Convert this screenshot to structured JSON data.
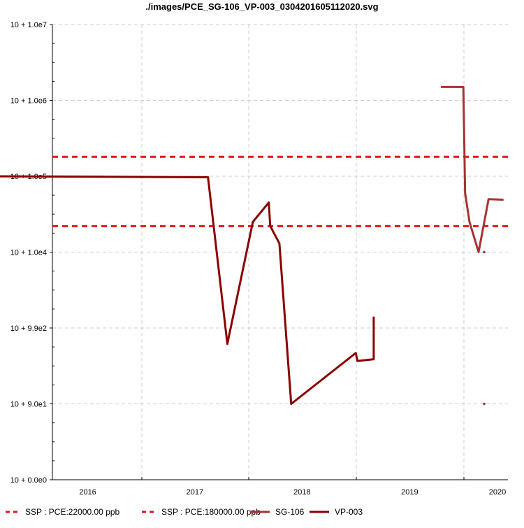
{
  "chart_data": {
    "type": "line",
    "title": "./images/PCE_SG-106_VP-003_0304201605112020.svg",
    "y_scale": "log",
    "ylim": [
      0,
      10000000
    ],
    "y_ticks": [
      {
        "value": 10000000,
        "label": "10 + 1.0e7"
      },
      {
        "value": 1000000,
        "label": "10 + 1.0e6"
      },
      {
        "value": 100000,
        "label": "10 + 1.0e5"
      },
      {
        "value": 10000,
        "label": "10 + 1.0e4"
      },
      {
        "value": 990,
        "label": "10 + 9.9e2"
      },
      {
        "value": 90,
        "label": "10 + 9.0e1"
      },
      {
        "value": 0,
        "label": "10 + 0.0e0"
      }
    ],
    "x_ticks": [
      "2016",
      "2017",
      "2018",
      "2019",
      "2020"
    ],
    "grid": true,
    "legend_position": "bottom",
    "thresholds": [
      {
        "name": "SSP : PCE:22000.00 ppb",
        "value": 22000,
        "color": "#e8151b",
        "style": "dashed"
      },
      {
        "name": "SSP : PCE:180000.00 ppb",
        "value": 180000,
        "color": "#e8151b",
        "style": "dashed"
      }
    ],
    "series": [
      {
        "name": "SG-106",
        "color": "#a83232",
        "points": [
          {
            "date": "2019-10-15",
            "value": 1500000
          },
          {
            "date": "2019-12-30",
            "value": 1500000
          },
          {
            "date": "2020-01-05",
            "value": 60000
          },
          {
            "date": "2020-01-20",
            "value": 25000
          },
          {
            "date": "2020-02-20",
            "value": 10000
          },
          {
            "date": "2020-03-25",
            "value": 50000
          },
          {
            "date": "2020-05-15",
            "value": 49000
          }
        ],
        "isolated_points": [
          {
            "date": "2020-03-10",
            "value": 10000
          },
          {
            "date": "2020-03-10",
            "value": 90
          }
        ]
      },
      {
        "name": "VP-003",
        "color": "#8b0000",
        "points": [
          {
            "date": "2015-07-01",
            "value": 100000
          },
          {
            "date": "2017-08-15",
            "value": 97000
          },
          {
            "date": "2017-10-20",
            "value": 600
          },
          {
            "date": "2018-01-15",
            "value": 25000
          },
          {
            "date": "2018-03-10",
            "value": 45000
          },
          {
            "date": "2018-03-15",
            "value": 22000
          },
          {
            "date": "2018-04-15",
            "value": 13000
          },
          {
            "date": "2018-05-25",
            "value": 90
          },
          {
            "date": "2018-12-30",
            "value": 450
          },
          {
            "date": "2019-01-05",
            "value": 350
          },
          {
            "date": "2019-03-01",
            "value": 370
          },
          {
            "date": "2019-03-01",
            "value": 1400
          }
        ]
      }
    ]
  }
}
